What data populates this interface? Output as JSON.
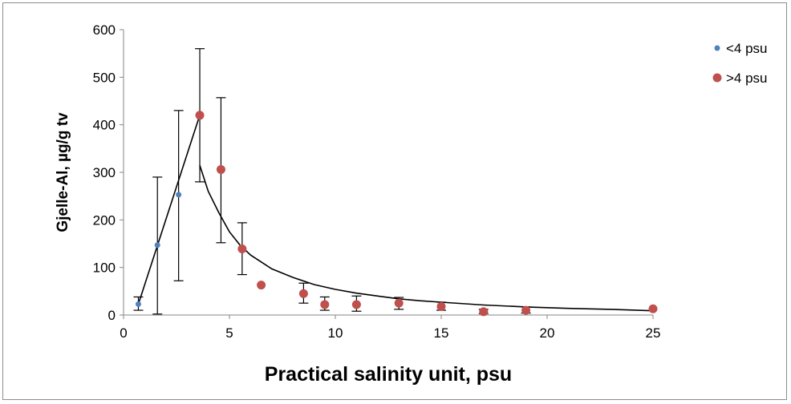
{
  "chart_data": {
    "type": "scatter",
    "title": "",
    "xlabel": "Practical salinity unit, psu",
    "ylabel": "Gjelle-Al, µg/g tv",
    "xlim": [
      0,
      25
    ],
    "ylim": [
      0,
      600
    ],
    "xticks": [
      0,
      5,
      10,
      15,
      20,
      25
    ],
    "yticks": [
      0,
      100,
      200,
      300,
      400,
      500,
      600
    ],
    "grid": false,
    "legend_position": "top-right",
    "series": [
      {
        "name": "<4 psu",
        "color": "#4f81bd",
        "marker": "small-circle",
        "points": [
          {
            "x": 0.7,
            "y": 23,
            "err_low": 10,
            "err_high": 38
          },
          {
            "x": 1.6,
            "y": 147,
            "err_low": 2,
            "err_high": 290
          },
          {
            "x": 2.6,
            "y": 253,
            "err_low": 72,
            "err_high": 430
          }
        ]
      },
      {
        "name": ">4 psu",
        "color": "#c0504d",
        "marker": "circle",
        "points": [
          {
            "x": 3.6,
            "y": 420,
            "err_low": 280,
            "err_high": 560
          },
          {
            "x": 4.6,
            "y": 306,
            "err_low": 152,
            "err_high": 457
          },
          {
            "x": 5.6,
            "y": 139,
            "err_low": 85,
            "err_high": 194
          },
          {
            "x": 6.5,
            "y": 63,
            "err_low": null,
            "err_high": null
          },
          {
            "x": 8.5,
            "y": 45,
            "err_low": 25,
            "err_high": 67
          },
          {
            "x": 9.5,
            "y": 22,
            "err_low": 10,
            "err_high": 38
          },
          {
            "x": 11.0,
            "y": 22,
            "err_low": 8,
            "err_high": 40
          },
          {
            "x": 13.0,
            "y": 25,
            "err_low": 12,
            "err_high": 37
          },
          {
            "x": 15.0,
            "y": 18,
            "err_low": 10,
            "err_high": 27
          },
          {
            "x": 17.0,
            "y": 7,
            "err_low": 3,
            "err_high": 12
          },
          {
            "x": 19.0,
            "y": 10,
            "err_low": 4,
            "err_high": 17
          },
          {
            "x": 25.0,
            "y": 13,
            "err_low": null,
            "err_high": null
          }
        ]
      }
    ],
    "trendlines": [
      {
        "type": "linear",
        "points": [
          [
            0.7,
            23
          ],
          [
            3.6,
            420
          ]
        ]
      },
      {
        "type": "power",
        "points": [
          [
            3.6,
            315
          ],
          [
            4.0,
            260
          ],
          [
            4.5,
            215
          ],
          [
            5.0,
            175
          ],
          [
            5.5,
            147
          ],
          [
            6.0,
            126
          ],
          [
            7.0,
            97
          ],
          [
            8.0,
            79
          ],
          [
            9.0,
            64
          ],
          [
            10.0,
            54
          ],
          [
            11.0,
            46
          ],
          [
            12.0,
            40
          ],
          [
            13.0,
            34
          ],
          [
            14.0,
            30
          ],
          [
            15.0,
            27
          ],
          [
            17.0,
            21
          ],
          [
            19.0,
            17
          ],
          [
            21.0,
            14
          ],
          [
            23.0,
            12
          ],
          [
            25.0,
            9
          ]
        ]
      }
    ]
  }
}
